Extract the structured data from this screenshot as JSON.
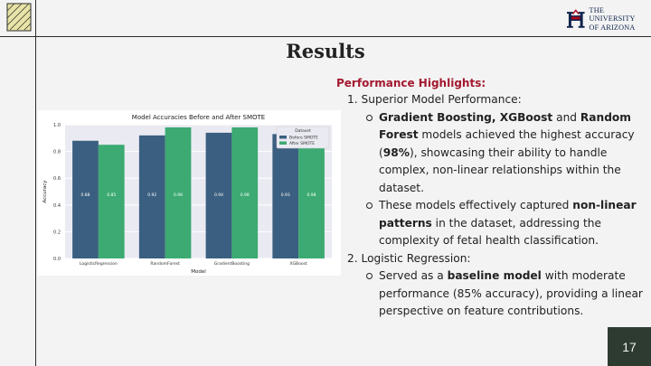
{
  "header": {
    "logo_line1": "THE UNIVERSITY",
    "logo_line2": "OF ARIZONA"
  },
  "slide": {
    "title": "Results",
    "page_number": "17"
  },
  "content": {
    "heading": "Performance Highlights:",
    "item1": {
      "number": "1.",
      "label": "Superior Model Performance:",
      "sub1": {
        "p1": "Gradient Boosting, XGBoost",
        "p2": " and ",
        "p3": "Random Forest",
        "p4": " models achieved the highest accuracy (",
        "p5": "98%",
        "p6": "), showcasing their ability to handle complex, non-linear relationships within the dataset."
      },
      "sub2": {
        "p1": "These models effectively captured ",
        "p2": "non-linear patterns",
        "p3": " in the dataset, addressing the complexity of fetal health classification."
      }
    },
    "item2": {
      "number": "2.",
      "label": "Logistic Regression:",
      "sub1": {
        "p1": "Served as a ",
        "p2": "baseline model",
        "p3": " with moderate performance (85% accuracy), providing a linear perspective on feature contributions."
      }
    }
  },
  "chart_data": {
    "type": "bar",
    "title": "Model Accuracies Before and After SMOTE",
    "xlabel": "Model",
    "ylabel": "Accuracy",
    "ylim": [
      0,
      1.0
    ],
    "yticks": [
      "0.0",
      "0.2",
      "0.4",
      "0.6",
      "0.8",
      "1.0"
    ],
    "categories": [
      "LogisticRegression",
      "RandomForest",
      "GradientBoosting",
      "XGBoost"
    ],
    "legend_title": "Dataset",
    "legend_position": "top-right",
    "series": [
      {
        "name": "Before SMOTE",
        "color": "#3b5f80",
        "values": [
          0.88,
          0.92,
          0.94,
          0.93
        ],
        "labels": [
          "0.88",
          "0.92",
          "0.94",
          "0.93"
        ]
      },
      {
        "name": "After SMOTE",
        "color": "#3caa72",
        "values": [
          0.85,
          0.98,
          0.98,
          0.98
        ],
        "labels": [
          "0.85",
          "0.98",
          "0.98",
          "0.98"
        ]
      }
    ]
  }
}
